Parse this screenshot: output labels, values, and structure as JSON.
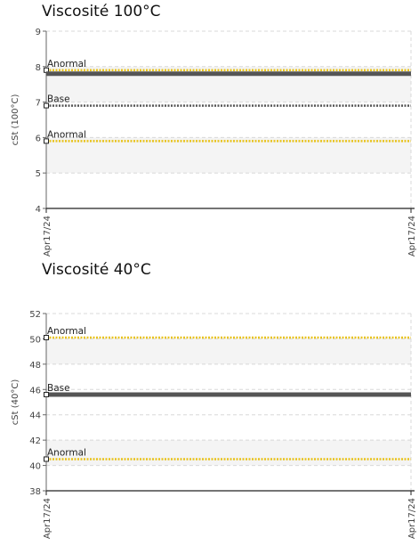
{
  "chart_data": [
    {
      "type": "line",
      "title": "Viscosité 100°C",
      "ylabel": "cSt (100°C)",
      "xlabel": "",
      "ylim": [
        4,
        9
      ],
      "yticks": [
        4,
        5,
        6,
        7,
        8,
        9
      ],
      "x_tick_labels": [
        "Apr17/24",
        "Apr17/24"
      ],
      "grid": true,
      "bands": [
        [
          7,
          8
        ],
        [
          5,
          6
        ]
      ],
      "series": [
        {
          "name": "Anormal",
          "y": 7.9,
          "color": "#e8c21a",
          "style": "dotted"
        },
        {
          "name": "",
          "y": 7.8,
          "color": "#555555",
          "style": "solid-thick"
        },
        {
          "name": "Base",
          "y": 6.9,
          "color": "#555555",
          "style": "dotted"
        },
        {
          "name": "Anormal",
          "y": 5.9,
          "color": "#e8c21a",
          "style": "dotted"
        }
      ]
    },
    {
      "type": "line",
      "title": "Viscosité 40°C",
      "ylabel": "cSt (40°C)",
      "xlabel": "",
      "ylim": [
        38,
        52
      ],
      "yticks": [
        38,
        40,
        42,
        44,
        46,
        48,
        50,
        52
      ],
      "x_tick_labels": [
        "Apr17/24",
        "Apr17/24"
      ],
      "grid": true,
      "bands": [
        [
          48,
          50
        ],
        [
          40,
          42
        ]
      ],
      "series": [
        {
          "name": "Anormal",
          "y": 50.1,
          "color": "#e8c21a",
          "style": "dotted"
        },
        {
          "name": "Base",
          "y": 45.6,
          "color": "#555555",
          "style": "solid-thick"
        },
        {
          "name": "Anormal",
          "y": 40.5,
          "color": "#e8c21a",
          "style": "dotted"
        }
      ]
    }
  ]
}
